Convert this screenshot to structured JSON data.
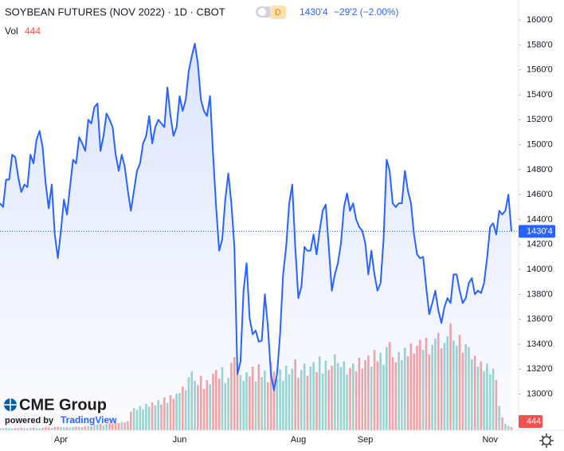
{
  "chart_data": {
    "type": "line",
    "title": "SOYBEAN FUTURES (NOV 2022) · 1D · CBOT",
    "interval_badge": "D",
    "last_price_label": "1430'4",
    "change_label": "−29'2 (−2.00%)",
    "color": "#2962ff",
    "categories": [
      null,
      null,
      null,
      null,
      null,
      null,
      null,
      null,
      null,
      null,
      null,
      null,
      null,
      null,
      null,
      null,
      null,
      null,
      null,
      null,
      "Apr",
      null,
      null,
      null,
      null,
      null,
      null,
      null,
      null,
      null,
      null,
      null,
      null,
      null,
      null,
      null,
      null,
      null,
      null,
      null,
      null,
      null,
      null,
      null,
      null,
      null,
      null,
      null,
      null,
      null,
      null,
      null,
      null,
      null,
      null,
      null,
      null,
      null,
      null,
      "Jun",
      null,
      null,
      null,
      null,
      null,
      null,
      null,
      null,
      null,
      null,
      null,
      null,
      null,
      null,
      null,
      null,
      null,
      null,
      null,
      null,
      null,
      null,
      null,
      null,
      null,
      null,
      null,
      null,
      null,
      null,
      null,
      null,
      null,
      null,
      null,
      null,
      null,
      null,
      "Aug",
      null,
      null,
      null,
      null,
      null,
      null,
      null,
      null,
      null,
      null,
      null,
      null,
      null,
      null,
      null,
      null,
      null,
      null,
      null,
      null,
      null,
      "Sep",
      null,
      null,
      null,
      null,
      null,
      null,
      null,
      null,
      null,
      null,
      null,
      null,
      null,
      null,
      null,
      null,
      null,
      null,
      null,
      null,
      null,
      null,
      null,
      null,
      null,
      null,
      null,
      null,
      null,
      null,
      null,
      null,
      null,
      null,
      null,
      null,
      null,
      null,
      null,
      null,
      "Nov",
      null,
      null,
      null,
      null,
      null,
      null,
      null
    ],
    "values": [
      1453,
      1450,
      1472,
      1472,
      1492,
      1490,
      1474,
      1462,
      1468,
      1466,
      1492,
      1485,
      1504,
      1511,
      1498,
      1469,
      1449,
      1468,
      1428,
      1409,
      1431,
      1456,
      1444,
      1466,
      1488,
      1485,
      1506,
      1501,
      1495,
      1520,
      1517,
      1530,
      1533,
      1495,
      1507,
      1525,
      1520,
      1514,
      1492,
      1479,
      1492,
      1482,
      1463,
      1447,
      1463,
      1479,
      1485,
      1501,
      1507,
      1523,
      1501,
      1514,
      1520,
      1517,
      1514,
      1546,
      1523,
      1507,
      1514,
      1539,
      1527,
      1536,
      1559,
      1571,
      1581,
      1565,
      1536,
      1527,
      1523,
      1539,
      1492,
      1450,
      1415,
      1424,
      1456,
      1477,
      1453,
      1418,
      1316,
      1326,
      1383,
      1405,
      1361,
      1348,
      1351,
      1342,
      1343,
      1380,
      1354,
      1316,
      1303,
      1316,
      1348,
      1396,
      1418,
      1453,
      1468,
      1418,
      1377,
      1386,
      1418,
      1415,
      1415,
      1428,
      1412,
      1431,
      1447,
      1452,
      1418,
      1383,
      1396,
      1405,
      1421,
      1450,
      1461,
      1447,
      1453,
      1440,
      1434,
      1431,
      1421,
      1396,
      1415,
      1396,
      1383,
      1389,
      1424,
      1488,
      1479,
      1453,
      1450,
      1453,
      1453,
      1479,
      1463,
      1453,
      1428,
      1412,
      1409,
      1410,
      1386,
      1364,
      1373,
      1383,
      1367,
      1357,
      1370,
      1377,
      1373,
      1396,
      1396,
      1383,
      1373,
      1377,
      1389,
      1393,
      1380,
      1383,
      1381,
      1389,
      1409,
      1434,
      1437,
      1428,
      1447,
      1444,
      1447,
      1460,
      1430.5
    ],
    "volume": {
      "label": "Vol",
      "up_color": "#9fd6cd",
      "down_color": "#f5a6a4",
      "values": [
        310,
        280,
        350,
        300,
        260,
        330,
        290,
        370,
        320,
        280,
        350,
        400,
        310,
        290,
        360,
        420,
        380,
        330,
        450,
        500,
        410,
        380,
        440,
        390,
        470,
        520,
        480,
        430,
        560,
        610,
        540,
        780,
        850,
        920,
        700,
        880,
        1020,
        950,
        1100,
        990,
        1150,
        1080,
        1250,
        2600,
        3100,
        2850,
        3400,
        2950,
        3700,
        3300,
        3900,
        3500,
        4200,
        3600,
        4600,
        3800,
        4900,
        4400,
        5100,
        5200,
        6100,
        5600,
        7400,
        8200,
        6900,
        6300,
        7600,
        5800,
        7000,
        6400,
        7900,
        8400,
        7200,
        8800,
        6600,
        7300,
        9400,
        10200,
        8600,
        7700,
        6900,
        8100,
        7500,
        8900,
        6800,
        9200,
        7400,
        8300,
        6700,
        9600,
        8200,
        7100,
        8500,
        6900,
        9000,
        7800,
        8600,
        9900,
        7300,
        8400,
        9300,
        7600,
        8900,
        9500,
        8100,
        10300,
        7900,
        9700,
        8400,
        9000,
        10600,
        9400,
        8800,
        9600,
        7800,
        8700,
        9300,
        8200,
        10100,
        8600,
        9800,
        10400,
        8900,
        11200,
        9600,
        10800,
        9100,
        11600,
        12300,
        10200,
        9500,
        10900,
        9800,
        11500,
        10300,
        12100,
        10700,
        11800,
        12600,
        11200,
        12900,
        10600,
        11900,
        12800,
        13600,
        11400,
        12200,
        13100,
        14900,
        12500,
        11800,
        13300,
        10800,
        12000,
        11600,
        9900,
        10400,
        8900,
        9600,
        8200,
        9300,
        7800,
        8600,
        7000,
        3400,
        1800,
        900,
        600,
        444
      ]
    },
    "ylim": [
      1271,
      1616
    ],
    "y2lim": [
      0,
      60000
    ],
    "yticks": [
      {
        "value": 1300,
        "label": "1300'0"
      },
      {
        "value": 1320,
        "label": "1320'0"
      },
      {
        "value": 1340,
        "label": "1340'0"
      },
      {
        "value": 1360,
        "label": "1360'0"
      },
      {
        "value": 1380,
        "label": "1380'0"
      },
      {
        "value": 1400,
        "label": "1400'0"
      },
      {
        "value": 1420,
        "label": "1420'0"
      },
      {
        "value": 1440,
        "label": "1440'0"
      },
      {
        "value": 1460,
        "label": "1460'0"
      },
      {
        "value": 1480,
        "label": "1480'0"
      },
      {
        "value": 1500,
        "label": "1500'0"
      },
      {
        "value": 1520,
        "label": "1520'0"
      },
      {
        "value": 1540,
        "label": "1540'0"
      },
      {
        "value": 1560,
        "label": "1560'0"
      },
      {
        "value": 1580,
        "label": "1580'0"
      },
      {
        "value": 1600,
        "label": "1600'0"
      }
    ],
    "grid": false
  },
  "branding": {
    "logo": "CME Group",
    "powered_by": "powered by",
    "provider": "TradingView"
  }
}
